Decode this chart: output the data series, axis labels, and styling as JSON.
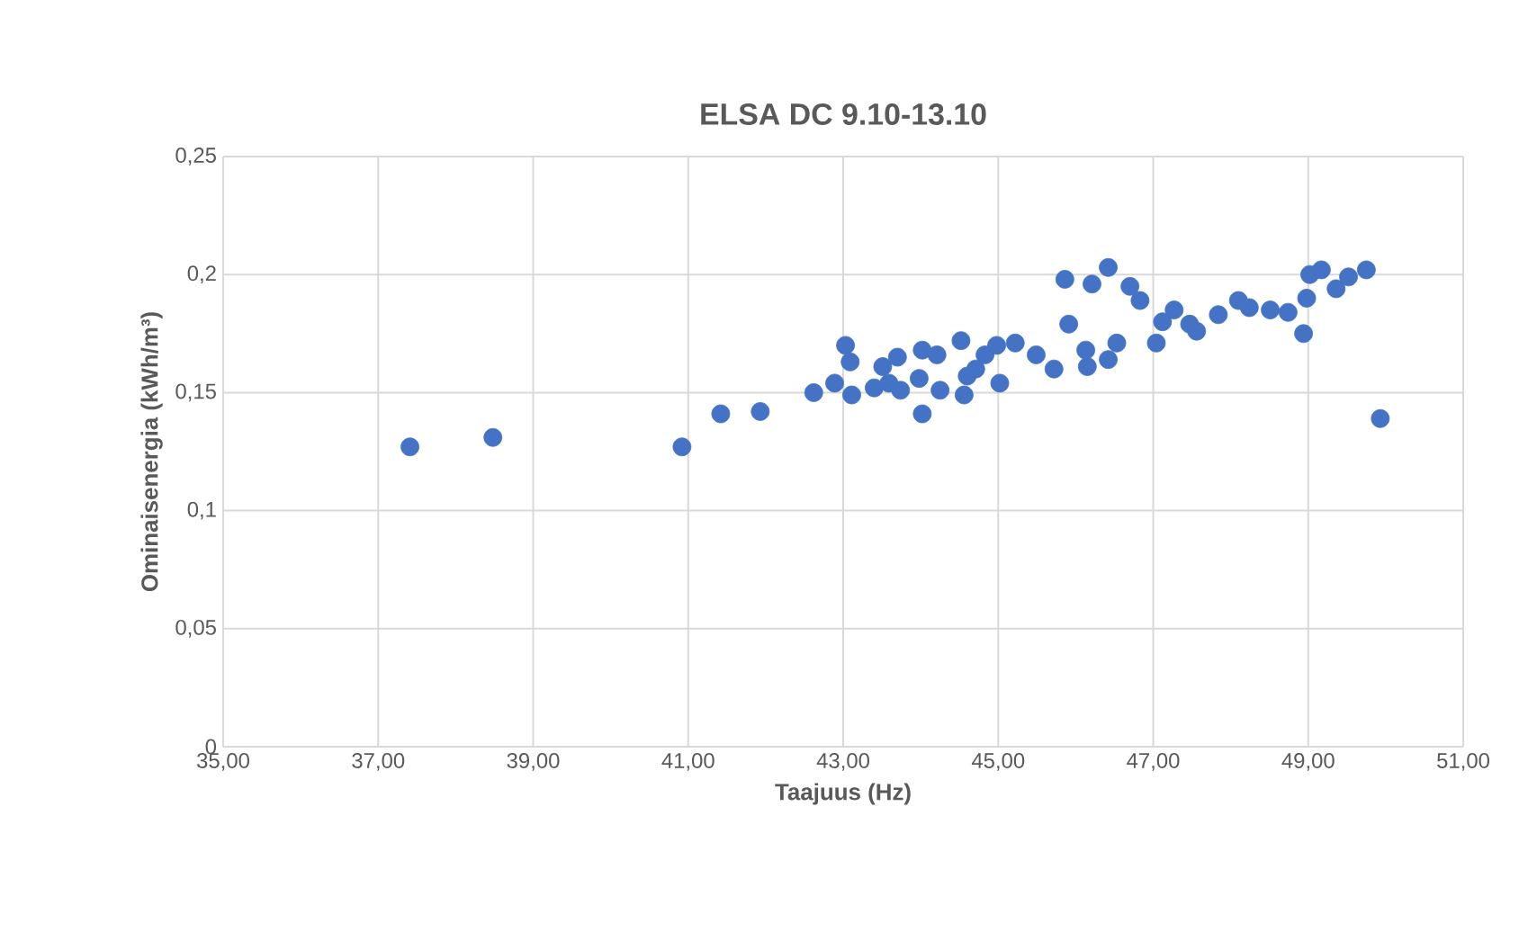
{
  "chart_data": {
    "type": "scatter",
    "title": "ELSA DC 9.10-13.10",
    "xlabel": "Taajuus (Hz)",
    "ylabel": "Ominaisenergia (kWh/m³)",
    "x": [
      37.41,
      38.48,
      40.92,
      41.42,
      41.93,
      42.62,
      42.89,
      43.03,
      43.09,
      43.11,
      43.4,
      43.51,
      43.59,
      43.7,
      43.74,
      43.98,
      44.02,
      44.02,
      44.21,
      44.25,
      44.52,
      44.56,
      44.6,
      44.71,
      44.83,
      44.98,
      45.02,
      45.22,
      45.49,
      45.72,
      45.86,
      45.91,
      46.13,
      46.15,
      46.21,
      46.42,
      46.42,
      46.53,
      46.7,
      46.83,
      47.04,
      47.12,
      47.27,
      47.47,
      47.56,
      47.84,
      48.1,
      48.24,
      48.51,
      48.74,
      48.94,
      48.98,
      49.02,
      49.17,
      49.36,
      49.52,
      49.75,
      49.93
    ],
    "values": [
      0.127,
      0.131,
      0.127,
      0.141,
      0.142,
      0.15,
      0.154,
      0.17,
      0.163,
      0.149,
      0.152,
      0.161,
      0.154,
      0.165,
      0.151,
      0.156,
      0.168,
      0.141,
      0.166,
      0.151,
      0.172,
      0.149,
      0.157,
      0.16,
      0.166,
      0.17,
      0.154,
      0.171,
      0.166,
      0.16,
      0.198,
      0.179,
      0.168,
      0.161,
      0.196,
      0.203,
      0.164,
      0.171,
      0.195,
      0.189,
      0.171,
      0.18,
      0.185,
      0.179,
      0.176,
      0.183,
      0.189,
      0.186,
      0.185,
      0.184,
      0.175,
      0.19,
      0.2,
      0.202,
      0.194,
      0.199,
      0.202,
      0.139
    ],
    "color": "#4472c4",
    "marker": "circle",
    "grid": true,
    "xlim": [
      35,
      51
    ],
    "xticks": [
      {
        "value": 35,
        "label": "35,00"
      },
      {
        "value": 37,
        "label": "37,00"
      },
      {
        "value": 39,
        "label": "39,00"
      },
      {
        "value": 41,
        "label": "41,00"
      },
      {
        "value": 43,
        "label": "43,00"
      },
      {
        "value": 45,
        "label": "45,00"
      },
      {
        "value": 47,
        "label": "47,00"
      },
      {
        "value": 49,
        "label": "49,00"
      },
      {
        "value": 51,
        "label": "51,00"
      }
    ],
    "ylim": [
      0,
      0.25
    ],
    "yticks": [
      0,
      {
        "value": 0.05,
        "label": "0,05"
      },
      {
        "value": 0.1,
        "label": "0,1"
      },
      {
        "value": 0.15,
        "label": "0,15"
      },
      {
        "value": 0.2,
        "label": "0,2"
      },
      {
        "value": 0.25,
        "label": "0,25"
      }
    ]
  }
}
